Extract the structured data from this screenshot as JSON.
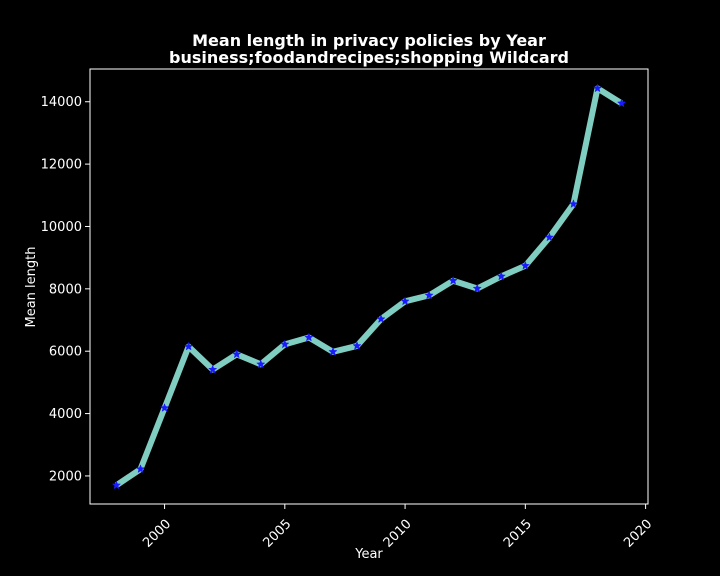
{
  "chart_data": {
    "type": "line",
    "title": "Mean length in privacy policies by Year",
    "subtitle": "business;foodandrecipes;shopping Wildcard",
    "xlabel": "Year",
    "ylabel": "Mean length",
    "xlim": [
      1996.9,
      2020.1
    ],
    "ylim": [
      1100,
      15050
    ],
    "xticks": [
      2000,
      2005,
      2010,
      2015,
      2020
    ],
    "yticks": [
      2000,
      4000,
      6000,
      8000,
      10000,
      12000,
      14000
    ],
    "grid": false,
    "legend": "none",
    "series": [
      {
        "x": [
          1998,
          1999,
          2000,
          2001,
          2002,
          2003,
          2004,
          2005,
          2006,
          2007,
          2008,
          2009,
          2010,
          2011,
          2012,
          2013,
          2014,
          2015,
          2016,
          2017,
          2018,
          2019
        ],
        "values": [
          1700,
          2220,
          4180,
          6150,
          5410,
          5900,
          5580,
          6220,
          6440,
          5980,
          6170,
          7030,
          7600,
          7790,
          8260,
          8010,
          8400,
          8740,
          9650,
          10720,
          14430,
          13950
        ],
        "line_color": "#80cdc1",
        "marker_color": "#1a1aff",
        "marker": "star"
      }
    ]
  }
}
